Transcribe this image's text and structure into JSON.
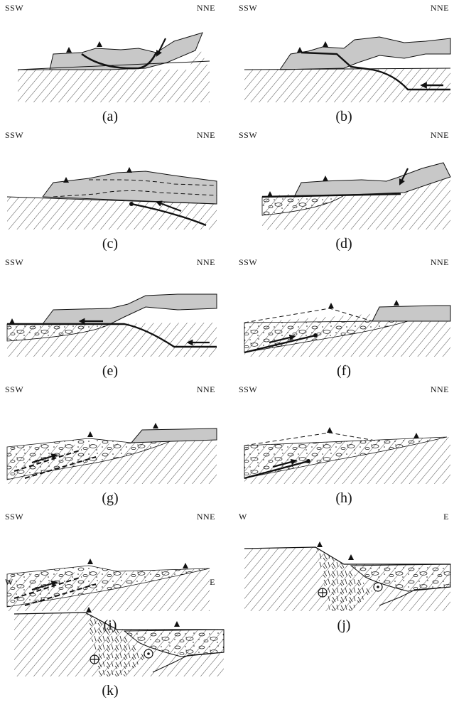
{
  "colors": {
    "ink": "#111111",
    "thrust_sheet": "#c8c8c8",
    "background": "#ffffff"
  },
  "panels": [
    {
      "id": "a",
      "caption": "(a)",
      "left_dir": "SSW",
      "right_dir": "NNE"
    },
    {
      "id": "b",
      "caption": "(b)",
      "left_dir": "SSW",
      "right_dir": "NNE"
    },
    {
      "id": "c",
      "caption": "(c)",
      "left_dir": "SSW",
      "right_dir": "NNE"
    },
    {
      "id": "d",
      "caption": "(d)",
      "left_dir": "SSW",
      "right_dir": "NNE"
    },
    {
      "id": "e",
      "caption": "(e)",
      "left_dir": "SSW",
      "right_dir": "NNE"
    },
    {
      "id": "f",
      "caption": "(f)",
      "left_dir": "SSW",
      "right_dir": "NNE"
    },
    {
      "id": "g",
      "caption": "(g)",
      "left_dir": "SSW",
      "right_dir": "NNE"
    },
    {
      "id": "h",
      "caption": "(h)",
      "left_dir": "SSW",
      "right_dir": "NNE"
    },
    {
      "id": "i",
      "caption": "(i)",
      "left_dir": "SSW",
      "right_dir": "NNE"
    },
    {
      "id": "j",
      "caption": "(j)",
      "left_dir": "W",
      "right_dir": "E"
    },
    {
      "id": "k",
      "caption": "(k)",
      "left_dir": "W",
      "right_dir": "E"
    }
  ]
}
